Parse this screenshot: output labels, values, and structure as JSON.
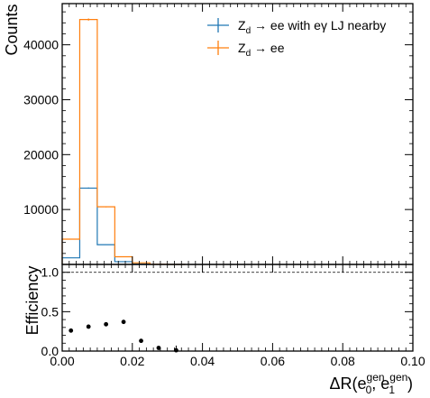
{
  "chart_data": [
    {
      "type": "histogram",
      "ylabel": "Counts",
      "xlim": [
        0.0,
        0.1
      ],
      "ylim": [
        0,
        47500
      ],
      "yticks": [
        10000,
        20000,
        30000,
        40000
      ],
      "ytick_labels": [
        "10000",
        "20000",
        "30000",
        "40000"
      ],
      "bin_edges": [
        0.0,
        0.005,
        0.01,
        0.015,
        0.02,
        0.025,
        0.03,
        0.035
      ],
      "legend_position": "top-right",
      "series": [
        {
          "name": "Z_d → ee with eγ LJ nearby",
          "label_main": "Z",
          "label_sub": "d",
          "label_rest": " → ee with eγ LJ nearby",
          "color": "#1f77b4",
          "values": [
            1200,
            13900,
            3600,
            500,
            60,
            8,
            1
          ]
        },
        {
          "name": "Z_d → ee",
          "label_main": "Z",
          "label_sub": "d",
          "label_rest": " → ee",
          "color": "#ff7f0e",
          "values": [
            4600,
            44600,
            10500,
            1400,
            300,
            30,
            3
          ]
        }
      ]
    },
    {
      "type": "scatter",
      "ylabel": "Efficiency",
      "xlabel": "ΔR(e_0^gen, e_1^gen)",
      "xlabel_parts": {
        "main": "ΔR(e",
        "sub0": "0",
        "sup0": "gen",
        "mid": ", e",
        "sub1": "1",
        "sup1": "gen",
        "end": ")"
      },
      "xlim": [
        0.0,
        0.1
      ],
      "ylim": [
        0.0,
        1.1
      ],
      "xticks": [
        0.0,
        0.02,
        0.04,
        0.06,
        0.08,
        0.1
      ],
      "xtick_labels": [
        "0.00",
        "0.02",
        "0.04",
        "0.06",
        "0.08",
        "0.10"
      ],
      "yticks": [
        0.0,
        0.5,
        1.0
      ],
      "ytick_labels": [
        "0.0",
        "0.5",
        "1.0"
      ],
      "reference_line": 1.0,
      "points": {
        "x": [
          0.0025,
          0.0075,
          0.0125,
          0.0175,
          0.0225,
          0.0275,
          0.0325
        ],
        "y": [
          0.26,
          0.31,
          0.34,
          0.37,
          0.13,
          0.04,
          0.01
        ],
        "yerr": [
          0.0,
          0.0,
          0.0,
          0.0,
          0.0,
          0.0,
          0.06
        ]
      },
      "color": "#000000"
    }
  ]
}
